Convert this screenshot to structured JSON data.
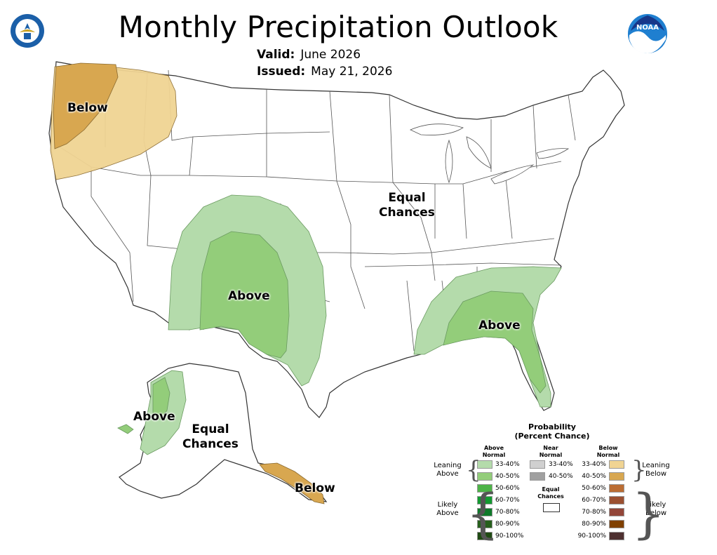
{
  "header": {
    "title": "Monthly Precipitation Outlook",
    "valid_label": "Valid:",
    "valid_value": "June 2026",
    "issued_label": "Issued:",
    "issued_value": "May 21, 2026"
  },
  "logos": {
    "left": "doc-seal-icon",
    "right_text": "NOAA"
  },
  "map_labels": {
    "below_nw": "Below",
    "equal_conus_1": "Equal",
    "equal_conus_2": "Chances",
    "above_sw": "Above",
    "above_se": "Above",
    "above_ak": "Above",
    "equal_ak_1": "Equal",
    "equal_ak_2": "Chances",
    "below_ak": "Below"
  },
  "legend": {
    "title_1": "Probability",
    "title_2": "(Percent Chance)",
    "above_head_1": "Above",
    "above_head_2": "Normal",
    "near_head_1": "Near",
    "near_head_2": "Normal",
    "below_head_1": "Below",
    "below_head_2": "Normal",
    "leaning_above_1": "Leaning",
    "leaning_above_2": "Above",
    "likely_above_1": "Likely",
    "likely_above_2": "Above",
    "leaning_below_1": "Leaning",
    "leaning_below_2": "Below",
    "likely_below_1": "Likely",
    "likely_below_2": "Below",
    "equal_1": "Equal",
    "equal_2": "Chances",
    "above": [
      {
        "label": "33-40%",
        "color": "#b4dbab"
      },
      {
        "label": "40-50%",
        "color": "#93cd7a"
      },
      {
        "label": "50-60%",
        "color": "#4db347"
      },
      {
        "label": "60-70%",
        "color": "#139a30"
      },
      {
        "label": "70-80%",
        "color": "#0f7a2a"
      },
      {
        "label": "80-90%",
        "color": "#265f1c"
      },
      {
        "label": "90-100%",
        "color": "#1f4a13"
      }
    ],
    "near": [
      {
        "label": "33-40%",
        "color": "#d0d0d0"
      },
      {
        "label": "40-50%",
        "color": "#a0a0a0"
      }
    ],
    "below": [
      {
        "label": "33-40%",
        "color": "#f0d493"
      },
      {
        "label": "40-50%",
        "color": "#d8a750"
      },
      {
        "label": "50-60%",
        "color": "#bb6d33"
      },
      {
        "label": "60-70%",
        "color": "#9b5031"
      },
      {
        "label": "70-80%",
        "color": "#934639"
      },
      {
        "label": "80-90%",
        "color": "#804000"
      },
      {
        "label": "90-100%",
        "color": "#4e3030"
      }
    ]
  }
}
